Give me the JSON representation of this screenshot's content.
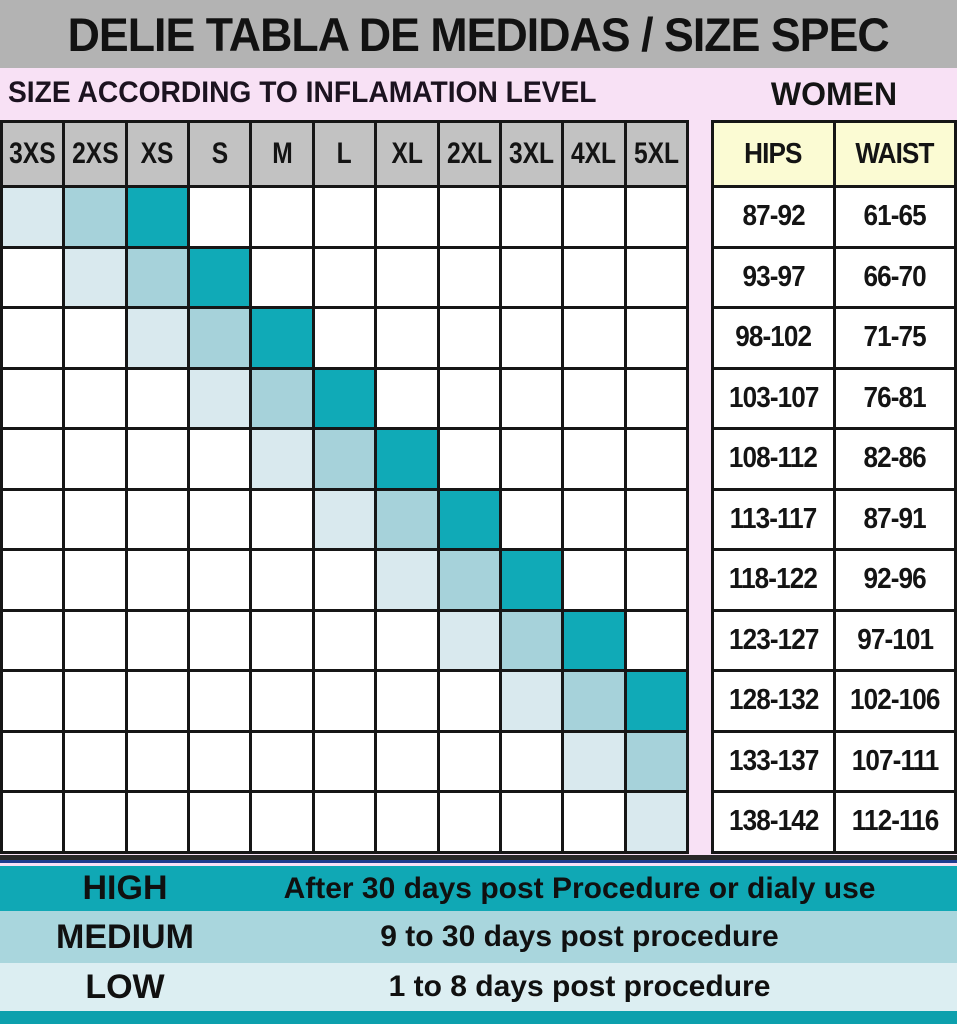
{
  "header": {
    "title": "DELIE TABLA DE MEDIDAS / SIZE SPEC"
  },
  "subheader": {
    "left": "SIZE ACCORDING TO INFLAMATION LEVEL",
    "right": "WOMEN"
  },
  "chart_data": {
    "type": "heatmap",
    "title": "DELIE TABLA DE MEDIDAS / SIZE SPEC",
    "subtitle": "SIZE ACCORDING TO INFLAMATION LEVEL",
    "columns": [
      "3XS",
      "2XS",
      "XS",
      "S",
      "M",
      "L",
      "XL",
      "2XL",
      "3XL",
      "4XL",
      "5XL"
    ],
    "legend_position": "bottom",
    "rows": [
      {
        "hips": "87-92",
        "waist": "61-65",
        "low": "3XS",
        "medium": "2XS",
        "high": "XS"
      },
      {
        "hips": "93-97",
        "waist": "66-70",
        "low": "2XS",
        "medium": "XS",
        "high": "S"
      },
      {
        "hips": "98-102",
        "waist": "71-75",
        "low": "XS",
        "medium": "S",
        "high": "M"
      },
      {
        "hips": "103-107",
        "waist": "76-81",
        "low": "S",
        "medium": "M",
        "high": "L"
      },
      {
        "hips": "108-112",
        "waist": "82-86",
        "low": "M",
        "medium": "L",
        "high": "XL"
      },
      {
        "hips": "113-117",
        "waist": "87-91",
        "low": "L",
        "medium": "XL",
        "high": "2XL"
      },
      {
        "hips": "118-122",
        "waist": "92-96",
        "low": "XL",
        "medium": "2XL",
        "high": "3XL"
      },
      {
        "hips": "123-127",
        "waist": "97-101",
        "low": "2XL",
        "medium": "3XL",
        "high": "4XL"
      },
      {
        "hips": "128-132",
        "waist": "102-106",
        "low": "3XL",
        "medium": "4XL",
        "high": "5XL"
      },
      {
        "hips": "133-137",
        "waist": "107-111",
        "low": "4XL",
        "medium": "5XL",
        "high": null
      },
      {
        "hips": "138-142",
        "waist": "112-116",
        "low": "5XL",
        "medium": null,
        "high": null
      }
    ]
  },
  "women_table": {
    "headers": [
      "HIPS",
      "WAIST"
    ]
  },
  "legend": [
    {
      "label": "HIGH",
      "description": "After 30 days post Procedure or dialy use",
      "bg": "#10a8b5"
    },
    {
      "label": "MEDIUM",
      "description": "9 to 30 days post procedure",
      "bg": "#a9d6dd"
    },
    {
      "label": "LOW",
      "description": "1 to 8 days post procedure",
      "bg": "#dceef2"
    }
  ],
  "colors": {
    "high": "#10aab7",
    "medium": "#a6d2da",
    "low": "#d9e9ee",
    "page_bg": "#f8e1f5",
    "title_bar_bg": "#b3b3b3",
    "grid_header_bg": "#c2c2c2",
    "women_header_bg": "#fbfbd3",
    "grid_line": "#161616",
    "divider_bg": "#282828",
    "divider_line": "#1e3d8f",
    "bottom_bar_bg": "#0da0ad",
    "text": "#141414"
  }
}
